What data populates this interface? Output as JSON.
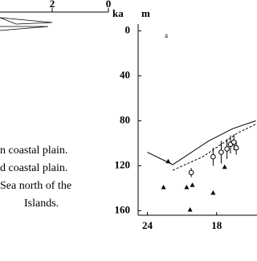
{
  "figure_text": {
    "left_lines": [
      "n coastal plain.",
      "d coastal plain.",
      "Sea north of the",
      "Islands."
    ],
    "top_scale": {
      "ticks": [
        2,
        0
      ],
      "unit": "ka"
    }
  },
  "chart_data": {
    "type": "scatter",
    "panel_label": "a",
    "y_label": "m",
    "y_inverted": true,
    "xlim": [
      24.8,
      14.5
    ],
    "ylim": [
      -6,
      164
    ],
    "xticks": [
      24,
      18
    ],
    "yticks": [
      0,
      40,
      80,
      120,
      160
    ],
    "series": [
      {
        "marker": "line",
        "color": "#000000",
        "dash": false,
        "x": [
          24,
          21.8,
          18.7,
          16.6,
          14.6
        ],
        "values": [
          108,
          119,
          98,
          87,
          80
        ]
      },
      {
        "marker": "line",
        "color": "#000000",
        "dash": true,
        "x": [
          21.8,
          19.2,
          17.6,
          16.2,
          14.6
        ],
        "values": [
          124,
          112,
          101,
          91,
          83
        ]
      },
      {
        "marker": "triangle",
        "color": "#000000",
        "x": [
          22.6,
          20.6,
          20.1,
          20.3,
          18.3,
          17.3,
          22.2
        ],
        "values": [
          139,
          139,
          137,
          159,
          144,
          121,
          116
        ]
      },
      {
        "marker": "circle",
        "color": "#000000",
        "x": [
          20.2,
          18.3,
          17.6,
          17.1,
          16.8,
          16.5,
          16.3
        ],
        "values": [
          126,
          112,
          108,
          105,
          101,
          99,
          104
        ],
        "yerr": [
          4,
          8,
          10,
          9,
          8,
          7,
          6
        ]
      }
    ]
  }
}
